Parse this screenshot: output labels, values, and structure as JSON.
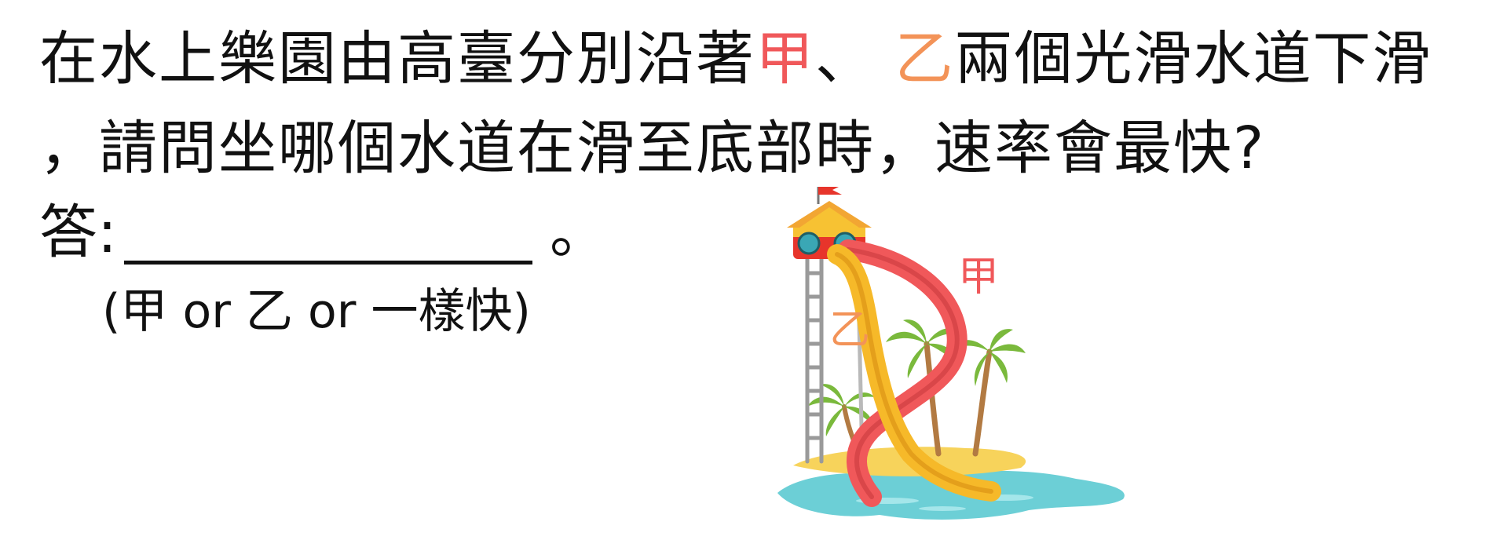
{
  "question": {
    "line1": {
      "before": "在水上樂園由高臺分別沿著",
      "slide_a": "甲",
      "sep": "、",
      "slide_b": "乙",
      "after": "兩個光滑水道下滑"
    },
    "line2": "，請問坐哪個水道在滑至底部時，速率會最快?"
  },
  "answer": {
    "label": "答:",
    "period": "。",
    "choices": "(甲 or 乙 or 一樣快)"
  },
  "illustration": {
    "label_a": "甲",
    "label_b": "乙"
  },
  "colors": {
    "slide_a": "#f0585a",
    "slide_b": "#f39358",
    "text": "#111111"
  }
}
